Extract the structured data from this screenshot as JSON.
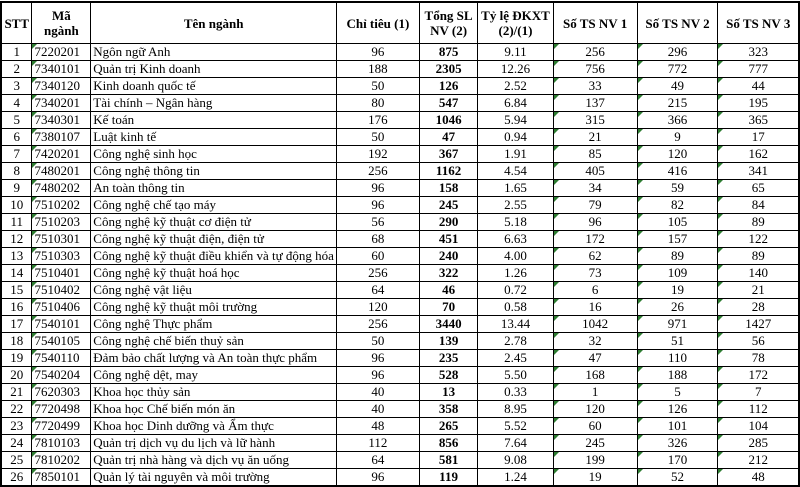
{
  "headers": [
    "STT",
    "Mã ngành",
    "Tên ngành",
    "Chỉ tiêu (1)",
    "Tổng SL NV (2)",
    "Tỷ lệ ĐKXT (2)/(1)",
    "Số TS NV 1",
    "Số TS NV 2",
    "Số TS NV 3"
  ],
  "rows": [
    [
      "1",
      "7220201",
      "Ngôn ngữ Anh",
      "96",
      "875",
      "9.11",
      "256",
      "296",
      "323"
    ],
    [
      "2",
      "7340101",
      "Quản trị Kinh doanh",
      "188",
      "2305",
      "12.26",
      "756",
      "772",
      "777"
    ],
    [
      "3",
      "7340120",
      "Kinh doanh quốc tế",
      "50",
      "126",
      "2.52",
      "33",
      "49",
      "44"
    ],
    [
      "4",
      "7340201",
      "Tài chính – Ngân hàng",
      "80",
      "547",
      "6.84",
      "137",
      "215",
      "195"
    ],
    [
      "5",
      "7340301",
      "Kế toán",
      "176",
      "1046",
      "5.94",
      "315",
      "366",
      "365"
    ],
    [
      "6",
      "7380107",
      "Luật kinh tế",
      "50",
      "47",
      "0.94",
      "21",
      "9",
      "17"
    ],
    [
      "7",
      "7420201",
      "Công nghệ sinh học",
      "192",
      "367",
      "1.91",
      "85",
      "120",
      "162"
    ],
    [
      "8",
      "7480201",
      "Công nghệ thông tin",
      "256",
      "1162",
      "4.54",
      "405",
      "416",
      "341"
    ],
    [
      "9",
      "7480202",
      "An toàn thông tin",
      "96",
      "158",
      "1.65",
      "34",
      "59",
      "65"
    ],
    [
      "10",
      "7510202",
      "Công nghệ chế tạo máy",
      "96",
      "245",
      "2.55",
      "79",
      "82",
      "84"
    ],
    [
      "11",
      "7510203",
      "Công nghệ kỹ thuật cơ điện tử",
      "56",
      "290",
      "5.18",
      "96",
      "105",
      "89"
    ],
    [
      "12",
      "7510301",
      "Công nghệ kỹ thuật điện, điện tử",
      "68",
      "451",
      "6.63",
      "172",
      "157",
      "122"
    ],
    [
      "13",
      "7510303",
      "Công nghệ kỹ thuật điều khiển và tự động hóa",
      "60",
      "240",
      "4.00",
      "62",
      "89",
      "89"
    ],
    [
      "14",
      "7510401",
      "Công nghệ kỹ thuật hoá học",
      "256",
      "322",
      "1.26",
      "73",
      "109",
      "140"
    ],
    [
      "15",
      "7510402",
      "Công nghệ vật liệu",
      "64",
      "46",
      "0.72",
      "6",
      "19",
      "21"
    ],
    [
      "16",
      "7510406",
      "Công nghệ kỹ thuật môi trường",
      "120",
      "70",
      "0.58",
      "16",
      "26",
      "28"
    ],
    [
      "17",
      "7540101",
      "Công nghệ Thực phẩm",
      "256",
      "3440",
      "13.44",
      "1042",
      "971",
      "1427"
    ],
    [
      "18",
      "7540105",
      "Công nghệ chế biến thuỷ sản",
      "50",
      "139",
      "2.78",
      "32",
      "51",
      "56"
    ],
    [
      "19",
      "7540110",
      "Đảm bảo chất lượng và An toàn thực phẩm",
      "96",
      "235",
      "2.45",
      "47",
      "110",
      "78"
    ],
    [
      "20",
      "7540204",
      "Công nghệ dệt, may",
      "96",
      "528",
      "5.50",
      "168",
      "188",
      "172"
    ],
    [
      "21",
      "7620303",
      "Khoa học thủy sản",
      "40",
      "13",
      "0.33",
      "1",
      "5",
      "7"
    ],
    [
      "22",
      "7720498",
      "Khoa học Chế biến món ăn",
      "40",
      "358",
      "8.95",
      "120",
      "126",
      "112"
    ],
    [
      "23",
      "7720499",
      "Khoa học Dinh dưỡng và Ẩm thực",
      "48",
      "265",
      "5.52",
      "60",
      "101",
      "104"
    ],
    [
      "24",
      "7810103",
      "Quản trị dịch vụ du lịch và lữ hành",
      "112",
      "856",
      "7.64",
      "245",
      "326",
      "285"
    ],
    [
      "25",
      "7810202",
      "Quản trị nhà hàng và dịch vụ ăn uống",
      "64",
      "581",
      "9.08",
      "199",
      "170",
      "212"
    ],
    [
      "26",
      "7850101",
      "Quản lý tài nguyên và môi trường",
      "96",
      "119",
      "1.24",
      "19",
      "52",
      "48"
    ]
  ],
  "colors": {
    "cell_flag": "#2e7d32",
    "border": "#000000"
  }
}
